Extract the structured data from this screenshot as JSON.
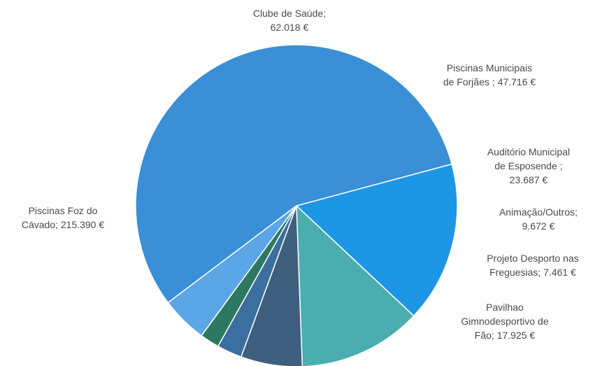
{
  "chart_data": {
    "type": "pie",
    "start_angle_deg": 75,
    "direction": "clockwise",
    "slices": [
      {
        "name": "Clube de Saúde",
        "value": 62018,
        "label_lines": [
          "Clube de Saúde;",
          "62.018 €"
        ],
        "color": "#1e96e6"
      },
      {
        "name": "Piscinas Municipais de Forjães",
        "value": 47716,
        "label_lines": [
          "Piscinas Municipais",
          "de Forjães ; 47.716 €"
        ],
        "color": "#4aaeb0"
      },
      {
        "name": "Auditório Municipal de Esposende",
        "value": 23687,
        "label_lines": [
          "Auditório Municipal",
          "de Esposende ;",
          "23.687 €"
        ],
        "color": "#3e5f7e"
      },
      {
        "name": "Animação/Outros",
        "value": 9672,
        "label_lines": [
          "Animação/Outros;",
          "9.672 €"
        ],
        "color": "#3a6fa0"
      },
      {
        "name": "Projeto Desporto nas Freguesias",
        "value": 7461,
        "label_lines": [
          "Projeto Desporto nas",
          "Freguesias; 7.461 €"
        ],
        "color": "#2d7860"
      },
      {
        "name": "Pavilhao Gimnodesportivo de Fão",
        "value": 17925,
        "label_lines": [
          "Pavilhao",
          "Gimnodesportivo de",
          "Fão; 17.925 €"
        ],
        "color": "#5aa6e6"
      },
      {
        "name": "Piscinas Foz do Cávado",
        "value": 215390,
        "label_lines": [
          "Piscinas Foz do",
          "Cávado; 215.390 €"
        ],
        "color": "#3a8fd6"
      }
    ]
  }
}
